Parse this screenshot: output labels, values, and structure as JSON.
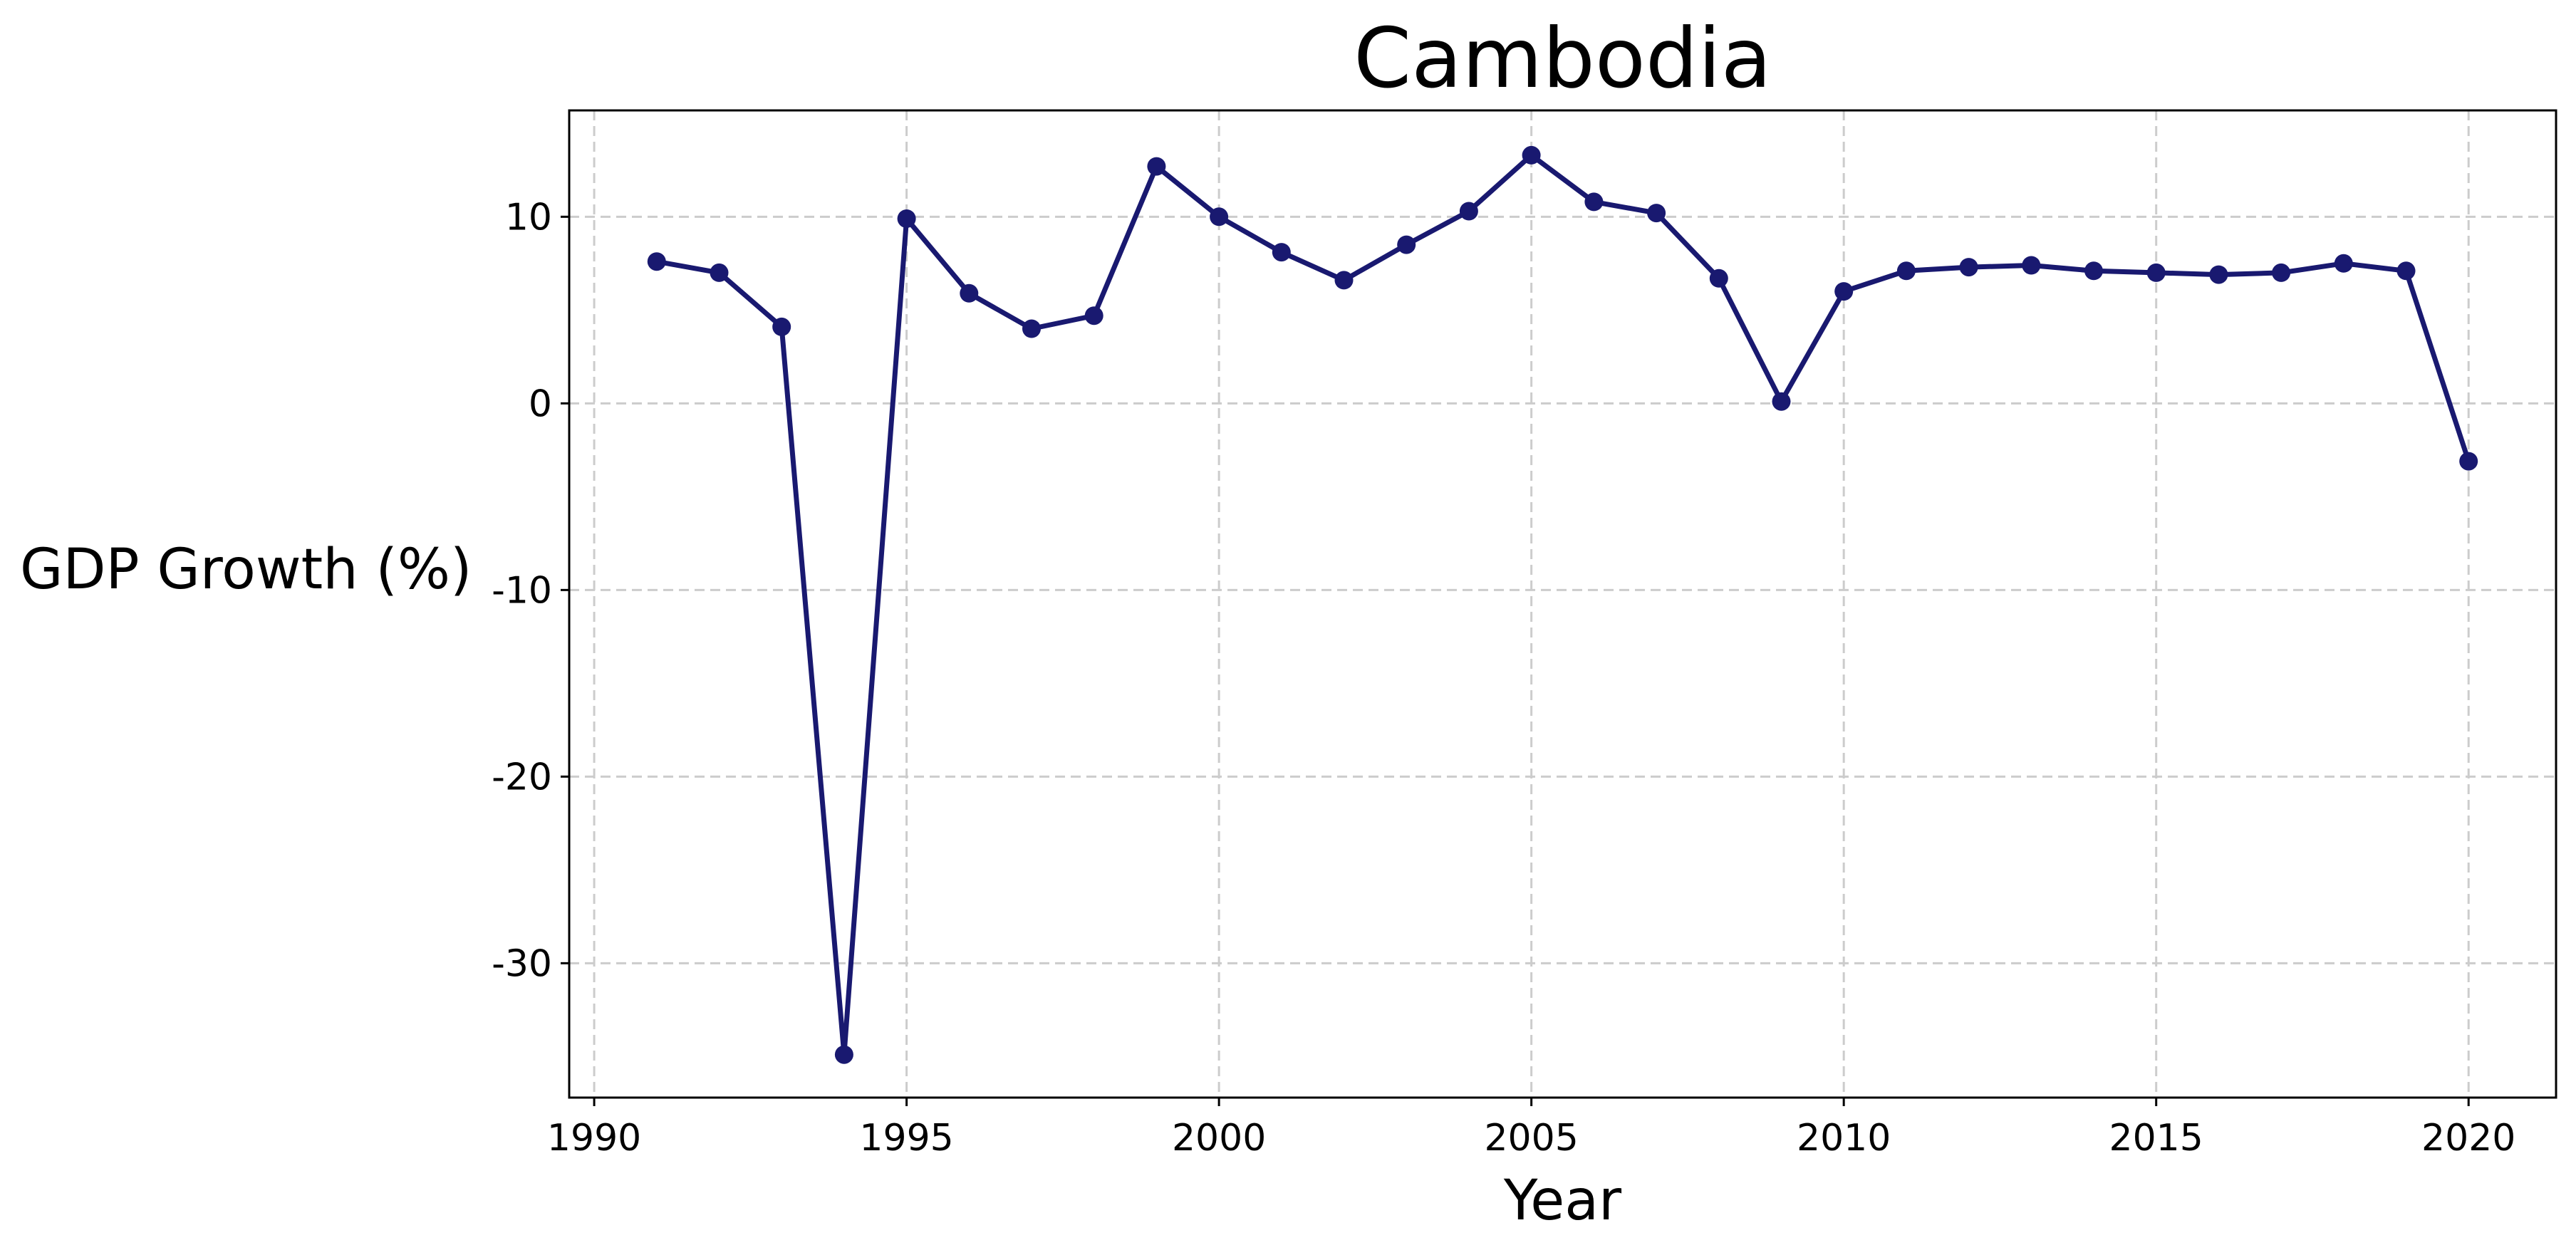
{
  "chart_data": {
    "type": "line",
    "title": "Cambodia",
    "xlabel": "Year",
    "ylabel": "GDP Growth (%)",
    "xlim": [
      1989.6,
      2021.4
    ],
    "ylim": [
      -37.2,
      15.7
    ],
    "xticks": [
      1990,
      1995,
      2000,
      2005,
      2010,
      2015,
      2020
    ],
    "xtick_labels": [
      "1990",
      "1995",
      "2000",
      "2005",
      "2010",
      "2015",
      "2020"
    ],
    "yticks": [
      10,
      0,
      -10,
      -20,
      -30
    ],
    "ytick_labels": [
      "10",
      "0",
      "-10",
      "-20",
      "-30"
    ],
    "grid": true,
    "legend": "none",
    "series": [
      {
        "color": "#191970",
        "marker": "circle",
        "x": [
          1991,
          1992,
          1993,
          1994,
          1995,
          1996,
          1997,
          1998,
          1999,
          2000,
          2001,
          2002,
          2003,
          2004,
          2005,
          2006,
          2007,
          2008,
          2009,
          2010,
          2011,
          2012,
          2013,
          2014,
          2015,
          2016,
          2017,
          2018,
          2019,
          2020
        ],
        "y": [
          7.6,
          7.0,
          4.1,
          -34.9,
          9.9,
          5.9,
          4.0,
          4.7,
          12.7,
          10.0,
          8.1,
          6.6,
          8.5,
          10.3,
          13.3,
          10.8,
          10.2,
          6.7,
          0.1,
          6.0,
          7.1,
          7.3,
          7.4,
          7.1,
          7.0,
          6.9,
          7.0,
          7.5,
          7.1,
          -3.1
        ]
      }
    ]
  }
}
